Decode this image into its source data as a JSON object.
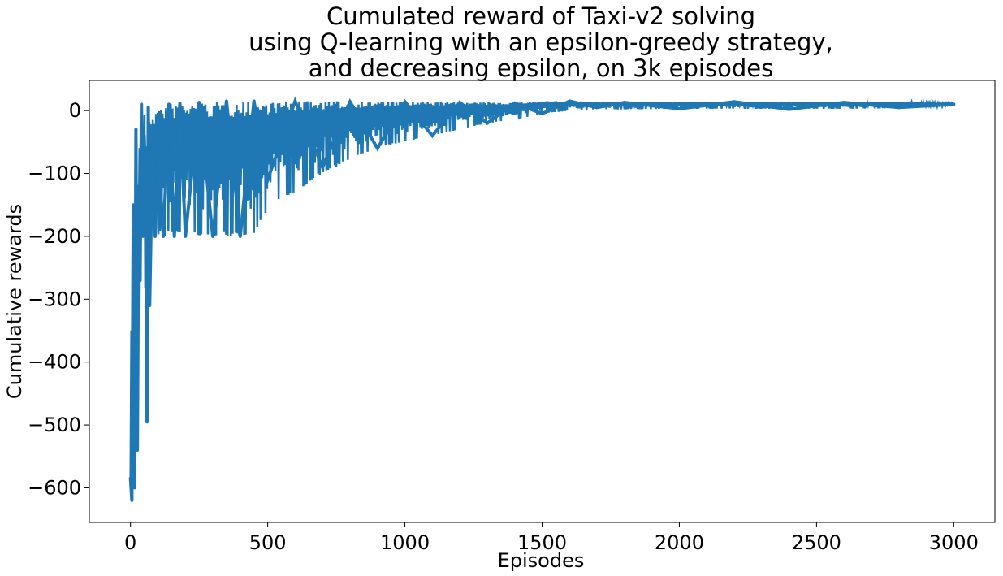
{
  "chart_data": {
    "type": "line",
    "title": [
      "Cumulated reward of Taxi-v2 solving",
      "using Q-learning with an epsilon-greedy strategy,",
      "and decreasing epsilon, on 3k episodes"
    ],
    "xlabel": "Episodes",
    "ylabel": "Cumulative rewards",
    "xlim": [
      -150,
      3150
    ],
    "ylim": [
      -655,
      48
    ],
    "xticks": [
      0,
      500,
      1000,
      1500,
      2000,
      2500,
      3000
    ],
    "yticks": [
      -600,
      -500,
      -400,
      -300,
      -200,
      -100,
      0
    ],
    "grid": false,
    "legend": "none",
    "series_color": "#1f77b4",
    "series": [
      {
        "x": [
          0,
          5,
          10,
          15,
          20,
          25,
          30,
          35,
          40,
          45,
          50,
          55,
          60,
          65,
          70,
          80,
          90,
          100,
          120,
          140,
          160,
          180,
          200,
          250,
          300,
          350,
          400,
          450,
          500,
          600,
          700,
          800,
          900,
          1000,
          1100,
          1200,
          1300,
          1400,
          1500,
          1600,
          1700,
          1800,
          2000,
          2200,
          2400,
          2600,
          2800,
          3000
        ],
        "y": [
          -585,
          -620,
          -150,
          -600,
          -30,
          -540,
          -145,
          -270,
          10,
          -200,
          -40,
          -140,
          -495,
          5,
          -310,
          -60,
          -200,
          -55,
          -200,
          10,
          -200,
          12,
          -200,
          13,
          -200,
          15,
          -200,
          15,
          -110,
          15,
          -90,
          14,
          -60,
          14,
          -40,
          13,
          -20,
          12,
          -5,
          15,
          5,
          13,
          3,
          14,
          2,
          13,
          5,
          10
        ],
        "upper": [
          -585,
          -140,
          -140,
          -140,
          -30,
          -140,
          -30,
          -50,
          10,
          -40,
          8,
          -55,
          5,
          5,
          0,
          0,
          2,
          5,
          10,
          12,
          12,
          12,
          13,
          13,
          14,
          15,
          15,
          15,
          15,
          15,
          15,
          15,
          15,
          14,
          14,
          13,
          13,
          13,
          15,
          15,
          14,
          14,
          14,
          14,
          14,
          14,
          14,
          12
        ],
        "lower": [
          -585,
          -620,
          -600,
          -605,
          -540,
          -545,
          -270,
          -270,
          -200,
          -200,
          -200,
          -495,
          -495,
          -310,
          -310,
          -220,
          -200,
          -200,
          -200,
          -200,
          -200,
          -200,
          -200,
          -200,
          -200,
          -200,
          -200,
          -200,
          -160,
          -130,
          -100,
          -80,
          -60,
          -50,
          -40,
          -30,
          -20,
          -15,
          -5,
          0,
          2,
          2,
          3,
          3,
          3,
          3,
          4,
          8
        ]
      }
    ]
  }
}
